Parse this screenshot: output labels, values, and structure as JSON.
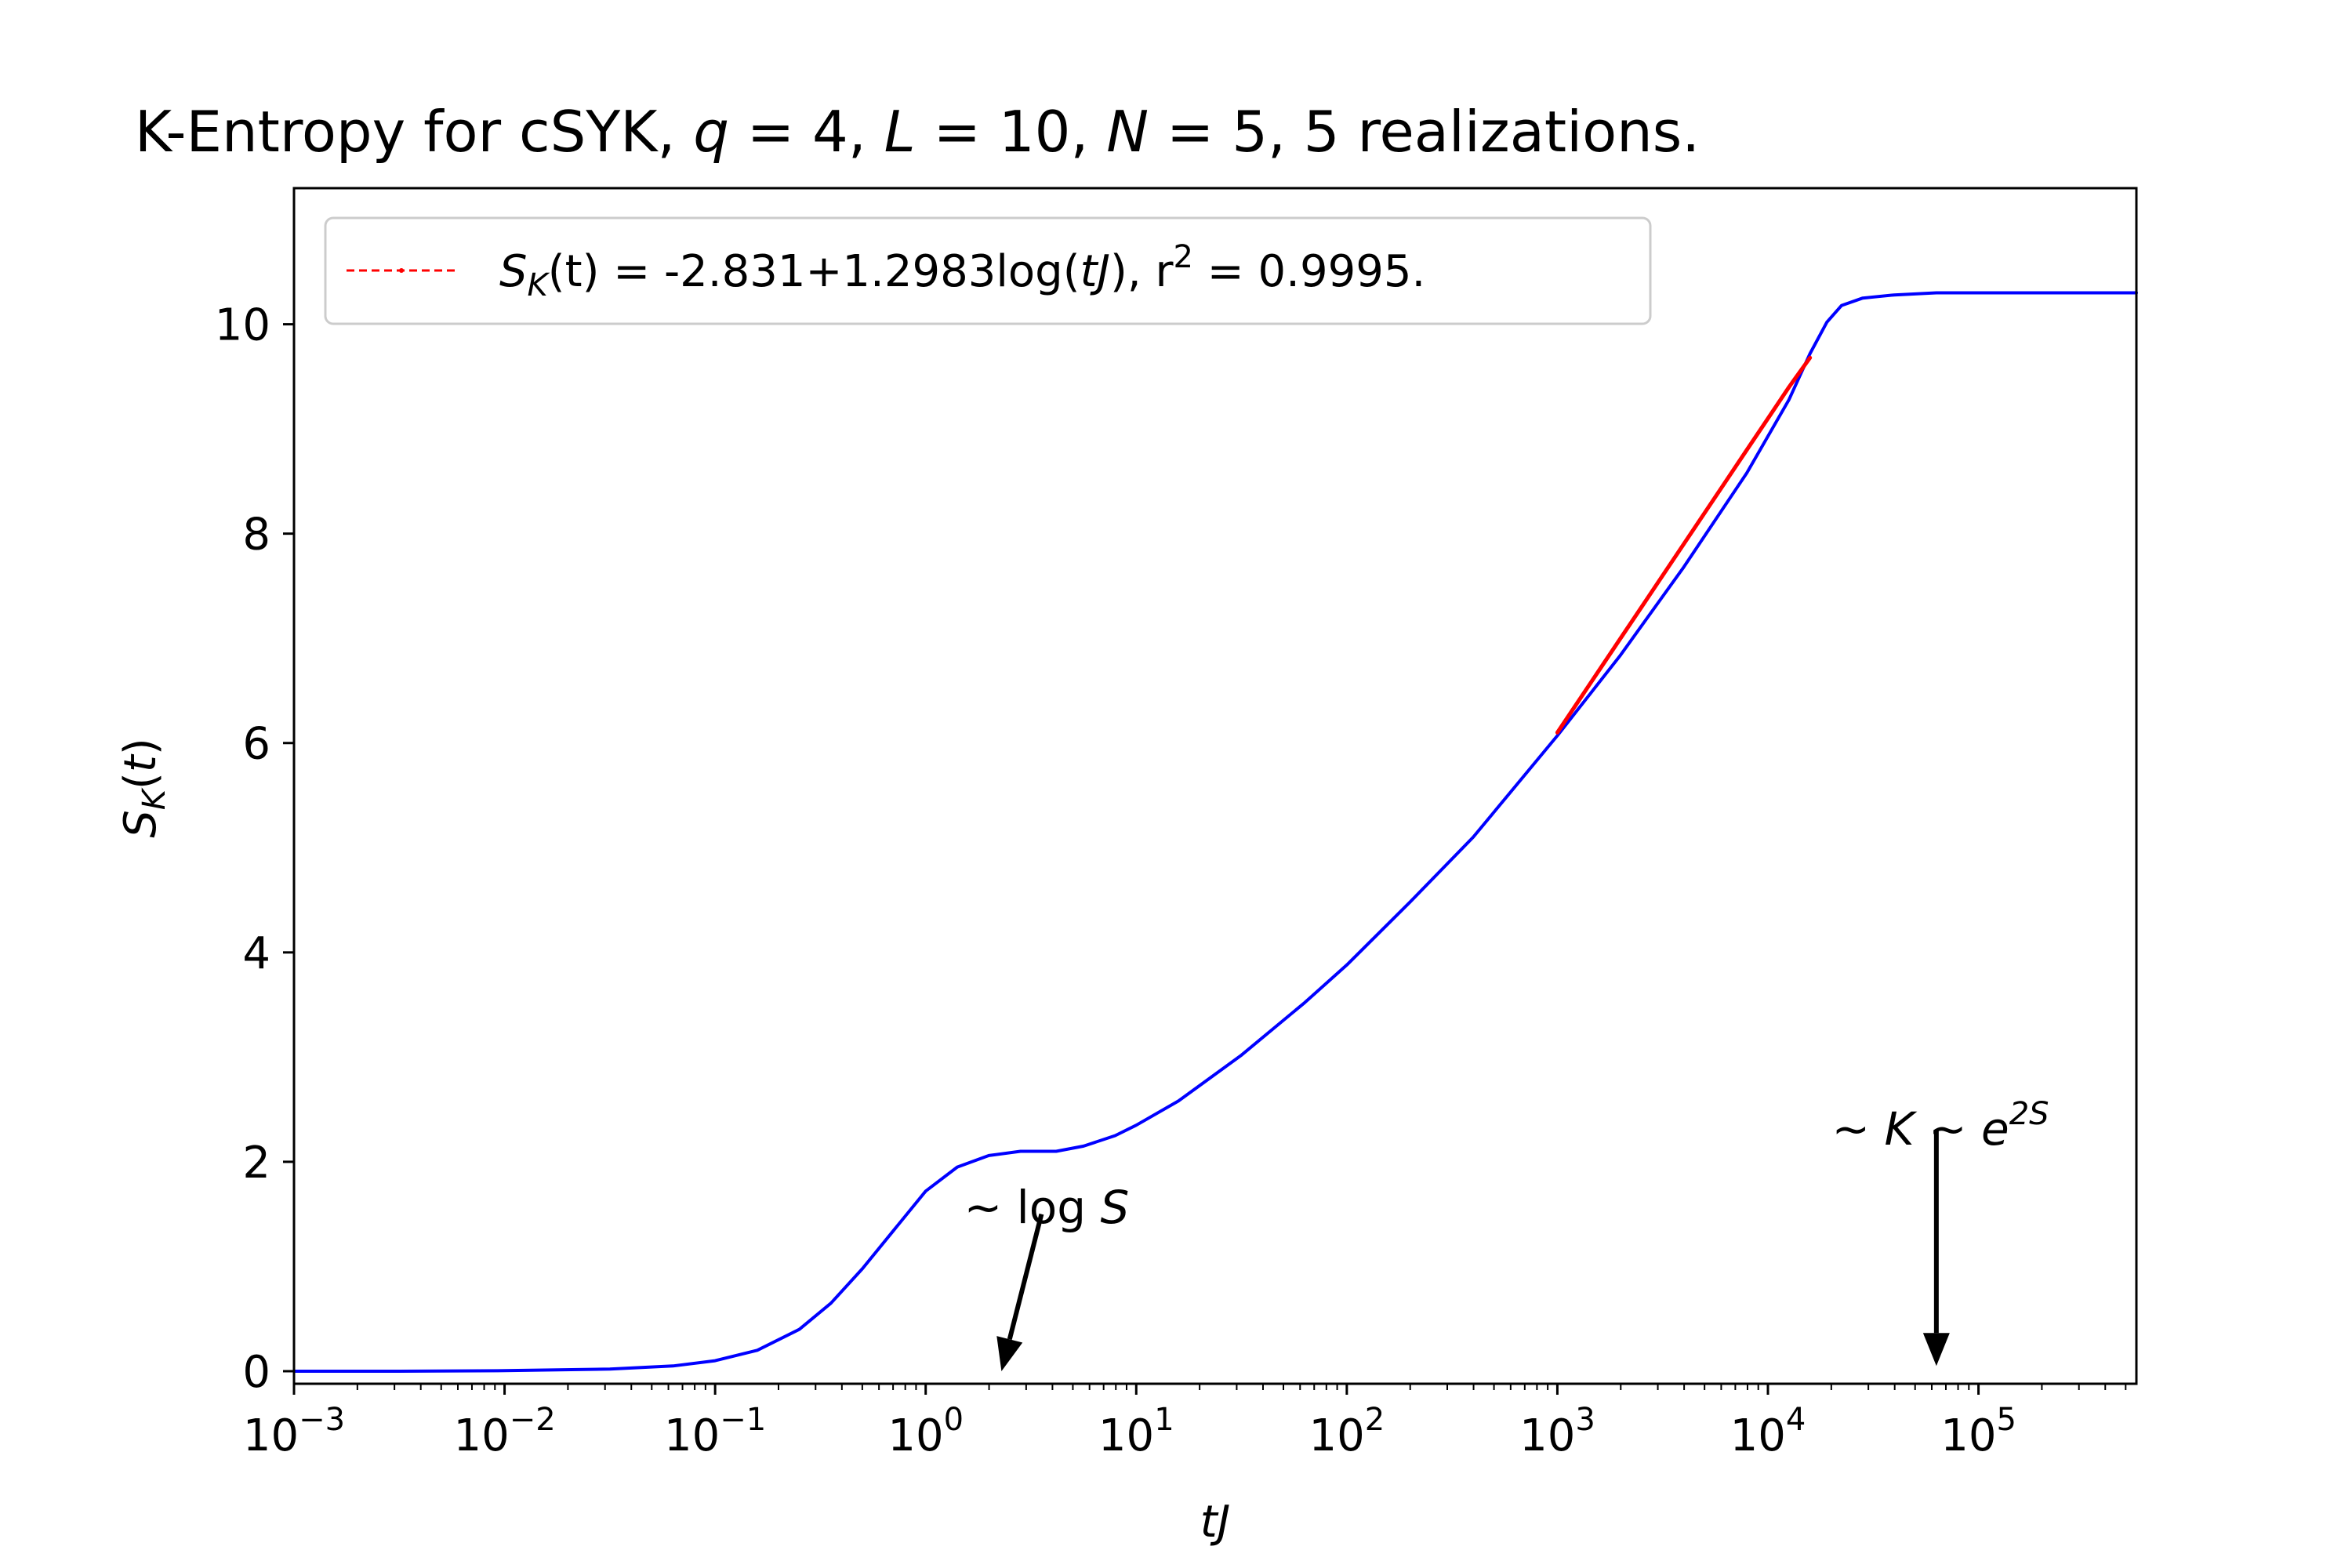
{
  "chart_data": {
    "type": "line",
    "title": {
      "prefix": "K-Entropy for cSYK, ",
      "q_sym": "q",
      "q_eq": " = 4, ",
      "L_sym": "L",
      "L_eq": " = 10, ",
      "N_sym": "N",
      "N_eq": " = 5, 5 realizations."
    },
    "xlabel": "tJ",
    "ylabel": "S_K(t)",
    "x_scale": "log",
    "xlim_log10": [
      -3,
      5.75
    ],
    "ylim": [
      -0.12,
      11.3
    ],
    "x_tick_exponents": [
      "-3",
      "-2",
      "-1",
      "0",
      "1",
      "2",
      "3",
      "4",
      "5"
    ],
    "x_tick_base": "10",
    "y_ticks": [
      0,
      2,
      4,
      6,
      8,
      10
    ],
    "y_tick_labels": [
      "0",
      "2",
      "4",
      "6",
      "8",
      "10"
    ],
    "legend": {
      "position": "top-left",
      "text_S": "S",
      "text_K": "K",
      "text_mid": "(t) = -2.831+1.2983log(",
      "text_tJ": "tJ",
      "text_r": "), r",
      "text_sup": "2",
      "text_end": " = 0.9995."
    },
    "series": [
      {
        "name": "S_K(t)",
        "color": "#0000ff",
        "style": "solid",
        "log10_x": [
          -3,
          -2.5,
          -2,
          -1.5,
          -1.2,
          -1.0,
          -0.8,
          -0.6,
          -0.45,
          -0.3,
          -0.15,
          0,
          0.15,
          0.3,
          0.45,
          0.55,
          0.62,
          0.75,
          0.9,
          1.0,
          1.2,
          1.5,
          1.8,
          2.0,
          2.3,
          2.6,
          3.0,
          3.3,
          3.6,
          3.9,
          4.1,
          4.2,
          4.28,
          4.35,
          4.45,
          4.6,
          4.8,
          5.0,
          5.3,
          5.75
        ],
        "y": [
          0.0,
          0.0,
          0.005,
          0.02,
          0.05,
          0.1,
          0.2,
          0.4,
          0.65,
          0.98,
          1.35,
          1.72,
          1.95,
          2.06,
          2.1,
          2.1,
          2.1,
          2.15,
          2.25,
          2.35,
          2.58,
          3.02,
          3.52,
          3.88,
          4.48,
          5.1,
          6.07,
          6.84,
          7.68,
          8.58,
          9.28,
          9.72,
          10.02,
          10.18,
          10.25,
          10.28,
          10.3,
          10.3,
          10.3,
          10.3
        ]
      },
      {
        "name": "S_K(t) = -2.831+1.2983log(tJ), r^2 = 0.9995.",
        "color": "#ff0000",
        "style": "dashed",
        "fit_intercept": -2.831,
        "fit_slope": 1.2983,
        "r2": 0.9995,
        "log10_x": [
          3.0,
          3.1,
          3.2,
          3.3,
          3.4,
          3.5,
          3.6,
          3.7,
          3.8,
          3.9,
          4.0,
          4.1,
          4.2
        ],
        "y": [
          6.1,
          6.4,
          6.7,
          7.0,
          7.3,
          7.6,
          7.9,
          8.2,
          8.5,
          8.8,
          9.1,
          9.4,
          9.68
        ]
      }
    ],
    "annotations": [
      {
        "name": "log-S-annotation",
        "text_prefix": "~ log ",
        "text_var": "S",
        "target_log10_x": 0.36,
        "target_y": 0.0,
        "text_log10_x": 0.55,
        "text_y": 1.5
      },
      {
        "name": "K-annotation",
        "text_a": "~ ",
        "text_K": "K",
        "text_b": " ~ ",
        "text_e": "e",
        "text_sup": "2S",
        "target_log10_x": 4.8,
        "target_y": 0.05,
        "text_log10_x": 4.8,
        "text_y": 2.3
      }
    ]
  }
}
